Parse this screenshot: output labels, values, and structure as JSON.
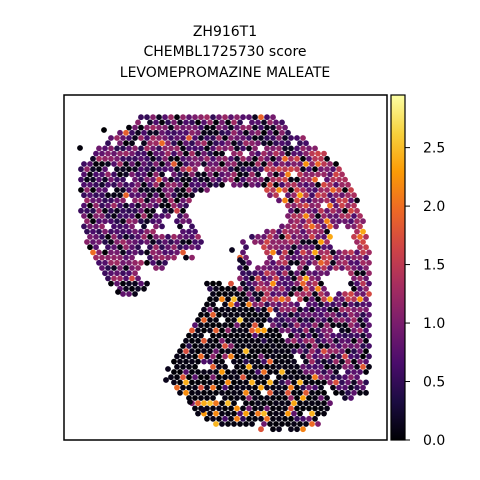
{
  "chart_data": {
    "type": "scatter",
    "title_lines": [
      "ZH916T1",
      "CHEMBL1725730 score",
      "LEVOMEPROMAZINE MALEATE"
    ],
    "xlabel": "",
    "ylabel": "",
    "grid": false,
    "legend": "none",
    "colormap": "inferno",
    "colorbar": {
      "range": [
        0.0,
        2.95
      ],
      "ticks": [
        0.0,
        0.5,
        1.0,
        1.5,
        2.0,
        2.5
      ],
      "tick_labels": [
        "0.0",
        "0.5",
        "1.0",
        "1.5",
        "2.0",
        "2.5"
      ]
    },
    "value_range": [
      0.0,
      2.9
    ],
    "colors": [
      "#000004",
      "#1b0c41",
      "#4a0c6b",
      "#781c6d",
      "#a52c60",
      "#cf4446",
      "#ed6925",
      "#fb9b06",
      "#f7d13d",
      "#fcffa4"
    ]
  }
}
